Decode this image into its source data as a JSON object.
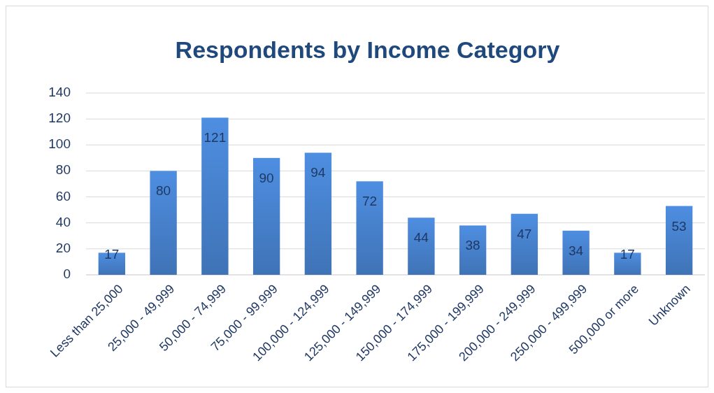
{
  "chart_data": {
    "type": "bar",
    "title": "Respondents by Income Category",
    "categories": [
      "Less than 25,000",
      "25,000 - 49,999",
      "50,000 - 74,999",
      "75,000 - 99,999",
      "100,000 - 124,999",
      "125,000 - 149,999",
      "150,000 - 174,999",
      "175,000 - 199,999",
      "200,000 - 249,999",
      "250,000 - 499,999",
      "500,000 or more",
      "Unknown"
    ],
    "values": [
      17,
      80,
      121,
      90,
      94,
      72,
      44,
      38,
      47,
      34,
      17,
      53
    ],
    "color": "#3f73b6",
    "ylim": [
      0,
      140
    ],
    "yticks": [
      0,
      20,
      40,
      60,
      80,
      100,
      120,
      140
    ],
    "grid": "y",
    "data_labels": true
  }
}
